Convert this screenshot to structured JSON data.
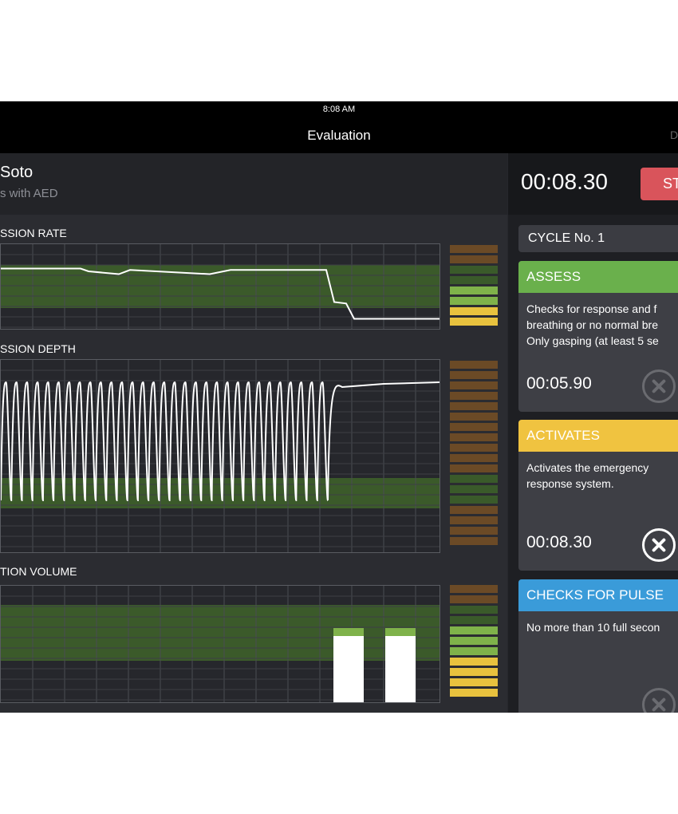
{
  "status_bar": {
    "time": "8:08 AM"
  },
  "nav": {
    "title": "Evaluation",
    "right_label": "D"
  },
  "patient": {
    "name": "Soto",
    "subtitle": "s with AED"
  },
  "timer": {
    "elapsed": "00:08.30",
    "stop_label": "ST"
  },
  "cycle": {
    "label": "CYCLE No. 1"
  },
  "steps": [
    {
      "title": "ASSESS",
      "color": "#6ab04c",
      "lines": [
        "Checks for response and f",
        "breathing or no normal bre",
        "Only gasping (at least 5 se"
      ],
      "time": "00:05.90",
      "done": false
    },
    {
      "title": "ACTIVATES",
      "color": "#f0c340",
      "lines": [
        "Activates the emergency",
        "response system."
      ],
      "time": "00:08.30",
      "done": true
    },
    {
      "title": "CHECKS FOR PULSE",
      "color": "#3a9bd9",
      "lines": [
        "No more than 10 full secon"
      ],
      "time": "",
      "done": false
    }
  ],
  "sections": {
    "rate": "SSION RATE",
    "depth": "SSION DEPTH",
    "volume": "TION VOLUME"
  },
  "colors": {
    "green_band": "#3b5a2a",
    "meter_brown": "#6b4a26",
    "meter_dark_green": "#3a5a2a",
    "meter_light_green": "#7fb24a",
    "meter_yellow": "#e8c23e"
  },
  "chart_data": [
    {
      "type": "line",
      "title": "SSION RATE",
      "x": [
        0,
        100,
        110,
        148,
        162,
        262,
        288,
        408,
        418,
        433,
        443,
        550
      ],
      "y": [
        0.1,
        0.1,
        0.0,
        -0.1,
        0.05,
        -0.1,
        0.05,
        0.05,
        -1.1,
        -1.15,
        -1.7,
        -1.7
      ]
    },
    {
      "type": "line",
      "title": "SSION DEPTH",
      "description": "compression depth waveform",
      "cycles": 31,
      "tail_values": [
        0.2,
        0.22,
        0.28
      ]
    },
    {
      "type": "bar",
      "title": "TION VOLUME",
      "values": [
        0.6,
        0.6
      ]
    }
  ]
}
